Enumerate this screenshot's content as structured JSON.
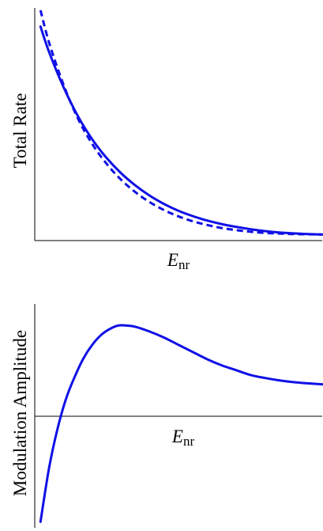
{
  "chart_data": [
    {
      "type": "line",
      "title": "",
      "xlabel": "E",
      "xlabel_subscript": "nr",
      "ylabel": "Total Rate",
      "x_ticks_shown": false,
      "y_ticks_shown": false,
      "grid": false,
      "legend": "none",
      "xlim": [
        0,
        10
      ],
      "ylim": [
        0,
        1
      ],
      "series": [
        {
          "style": "solid",
          "color": "#1010e6",
          "x": [
            0.2,
            0.5,
            1,
            1.5,
            2,
            2.5,
            3,
            3.5,
            4,
            4.5,
            5,
            5.5,
            6,
            6.5,
            7,
            7.5,
            8,
            8.5,
            9,
            9.5,
            10
          ],
          "values": [
            0.92,
            0.81,
            0.66,
            0.535,
            0.435,
            0.355,
            0.29,
            0.237,
            0.193,
            0.157,
            0.128,
            0.105,
            0.086,
            0.071,
            0.059,
            0.049,
            0.041,
            0.035,
            0.031,
            0.028,
            0.026
          ]
        },
        {
          "style": "dashed",
          "color": "#1010e6",
          "x": [
            0.2,
            0.5,
            1,
            1.5,
            2,
            2.5,
            3,
            3.5,
            4,
            4.5,
            5,
            5.5,
            6,
            6.5,
            7,
            7.5,
            8,
            8.5,
            9,
            9.5,
            10
          ],
          "values": [
            0.99,
            0.85,
            0.67,
            0.525,
            0.415,
            0.33,
            0.262,
            0.208,
            0.165,
            0.131,
            0.104,
            0.083,
            0.067,
            0.054,
            0.045,
            0.038,
            0.033,
            0.03,
            0.028,
            0.027,
            0.026
          ]
        }
      ]
    },
    {
      "type": "line",
      "title": "",
      "xlabel": "E",
      "xlabel_subscript": "nr",
      "ylabel": "Modulation Amplitude",
      "x_ticks_shown": false,
      "y_ticks_shown": false,
      "grid": false,
      "legend": "none",
      "xlim": [
        0,
        10
      ],
      "ylim": [
        -1.18,
        0.68
      ],
      "series": [
        {
          "style": "solid",
          "color": "#1010e6",
          "x": [
            0.2,
            0.5,
            0.8,
            1.1,
            1.4,
            1.7,
            2,
            2.3,
            2.6,
            2.9,
            3.2,
            3.5,
            4,
            4.5,
            5,
            5.5,
            6,
            6.5,
            7,
            7.5,
            8,
            8.5,
            9,
            9.5,
            10
          ],
          "values": [
            -1.13,
            -0.68,
            -0.35,
            -0.1,
            0.08,
            0.23,
            0.34,
            0.42,
            0.47,
            0.5,
            0.5,
            0.49,
            0.45,
            0.4,
            0.34,
            0.28,
            0.22,
            0.17,
            0.13,
            0.09,
            0.065,
            0.045,
            0.03,
            0.02,
            0.012
          ]
        }
      ]
    }
  ]
}
